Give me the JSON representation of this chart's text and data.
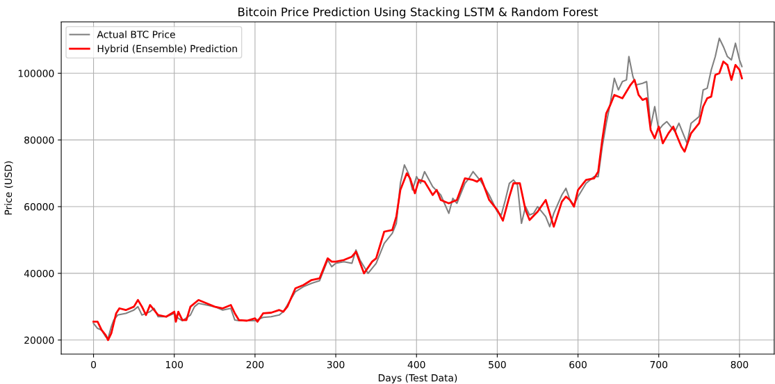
{
  "chart_data": {
    "type": "line",
    "title": "Bitcoin Price Prediction Using Stacking LSTM & Random Forest",
    "xlabel": "Days (Test Data)",
    "ylabel": "Price (USD)",
    "xlim": [
      -40,
      843
    ],
    "ylim": [
      15800,
      115400
    ],
    "xticks": [
      0,
      100,
      200,
      300,
      400,
      500,
      600,
      700,
      800
    ],
    "yticks": [
      20000,
      40000,
      60000,
      80000,
      100000
    ],
    "grid": true,
    "legend": "top left",
    "series": [
      {
        "name": "Actual BTC Price",
        "color": "#808080",
        "x": [
          0,
          5,
          10,
          15,
          18,
          22,
          25,
          30,
          40,
          50,
          55,
          60,
          70,
          75,
          80,
          90,
          100,
          105,
          110,
          120,
          125,
          130,
          140,
          150,
          160,
          170,
          175,
          180,
          190,
          200,
          210,
          220,
          230,
          235,
          240,
          250,
          260,
          270,
          280,
          290,
          295,
          300,
          310,
          320,
          325,
          330,
          340,
          350,
          360,
          370,
          375,
          380,
          385,
          390,
          395,
          400,
          405,
          410,
          420,
          430,
          440,
          445,
          450,
          460,
          465,
          470,
          480,
          490,
          500,
          505,
          510,
          515,
          520,
          525,
          530,
          535,
          540,
          545,
          550,
          560,
          565,
          570,
          580,
          585,
          590,
          595,
          600,
          610,
          620,
          625,
          630,
          635,
          640,
          645,
          650,
          655,
          660,
          663,
          668,
          672,
          680,
          685,
          690,
          695,
          700,
          705,
          710,
          720,
          725,
          730,
          735,
          740,
          750,
          755,
          760,
          765,
          770,
          775,
          780,
          785,
          790,
          795,
          800,
          803
        ],
        "values": [
          25000,
          23500,
          23000,
          21000,
          20500,
          24000,
          26000,
          27500,
          28000,
          29000,
          30000,
          27500,
          28500,
          29500,
          27000,
          27000,
          28000,
          26500,
          25800,
          27500,
          30000,
          31000,
          30500,
          30000,
          29000,
          29500,
          26000,
          25800,
          25800,
          25800,
          26800,
          27000,
          27500,
          28500,
          30500,
          34500,
          36000,
          37000,
          37800,
          44000,
          42000,
          43000,
          43500,
          43000,
          47000,
          44000,
          40000,
          43000,
          49000,
          52000,
          55000,
          67000,
          72500,
          70000,
          65000,
          69000,
          67000,
          70500,
          66000,
          63500,
          58000,
          62500,
          61000,
          67000,
          68500,
          70500,
          67500,
          63500,
          58500,
          57500,
          62000,
          67000,
          68000,
          66500,
          55000,
          60000,
          57500,
          58000,
          60000,
          57000,
          54000,
          58000,
          63500,
          65500,
          62000,
          60500,
          63000,
          67000,
          69000,
          69000,
          78000,
          85000,
          91000,
          98500,
          95000,
          97500,
          98000,
          105000,
          99000,
          96500,
          97000,
          97500,
          84000,
          90000,
          83000,
          84500,
          85500,
          82500,
          85000,
          82000,
          79000,
          85000,
          87000,
          95000,
          95500,
          101000,
          105000,
          110500,
          108000,
          105000,
          104000,
          109000,
          104000,
          102000
        ]
      },
      {
        "name": "Hybrid (Ensemble) Prediction",
        "color": "#ff0000",
        "x": [
          0,
          5,
          10,
          15,
          18,
          22,
          28,
          32,
          40,
          50,
          55,
          60,
          65,
          70,
          75,
          80,
          90,
          100,
          102,
          105,
          110,
          115,
          120,
          130,
          140,
          150,
          160,
          170,
          175,
          180,
          190,
          200,
          203,
          210,
          220,
          230,
          235,
          240,
          250,
          260,
          270,
          280,
          290,
          295,
          300,
          310,
          320,
          325,
          335,
          345,
          350,
          360,
          370,
          375,
          380,
          388,
          392,
          398,
          403,
          410,
          420,
          425,
          430,
          440,
          450,
          460,
          470,
          475,
          480,
          490,
          500,
          507,
          515,
          520,
          528,
          535,
          540,
          550,
          560,
          565,
          570,
          580,
          585,
          590,
          595,
          600,
          610,
          620,
          625,
          630,
          635,
          640,
          645,
          655,
          665,
          670,
          675,
          680,
          685,
          690,
          695,
          700,
          705,
          712,
          718,
          722,
          728,
          732,
          740,
          750,
          755,
          760,
          765,
          770,
          775,
          780,
          785,
          790,
          795,
          800,
          803
        ],
        "values": [
          25500,
          25500,
          23000,
          21500,
          20000,
          22000,
          28000,
          29500,
          29000,
          30000,
          32000,
          30000,
          27500,
          30500,
          29000,
          27500,
          27000,
          28500,
          25500,
          28500,
          26000,
          26000,
          30000,
          32000,
          31000,
          30000,
          29500,
          30500,
          28000,
          26000,
          25800,
          26500,
          25500,
          28000,
          28200,
          29000,
          28500,
          30000,
          35500,
          36500,
          38000,
          38500,
          44500,
          43500,
          43500,
          44000,
          45000,
          46500,
          40000,
          43500,
          44500,
          52500,
          53000,
          57000,
          65000,
          70000,
          68500,
          64000,
          68000,
          67500,
          63500,
          65000,
          62000,
          61000,
          62000,
          68500,
          68000,
          67500,
          68500,
          62000,
          59000,
          55800,
          63000,
          67000,
          67000,
          59000,
          56000,
          58500,
          62000,
          58000,
          54000,
          61500,
          63000,
          62000,
          60000,
          65000,
          68000,
          68500,
          70500,
          80000,
          88000,
          90500,
          93500,
          92500,
          96500,
          98000,
          93500,
          92000,
          92500,
          83000,
          80500,
          84000,
          79000,
          82000,
          84000,
          81500,
          78000,
          76500,
          82000,
          85000,
          90000,
          92500,
          93000,
          99500,
          100000,
          103500,
          102500,
          98000,
          102500,
          101000,
          98500
        ]
      }
    ]
  }
}
